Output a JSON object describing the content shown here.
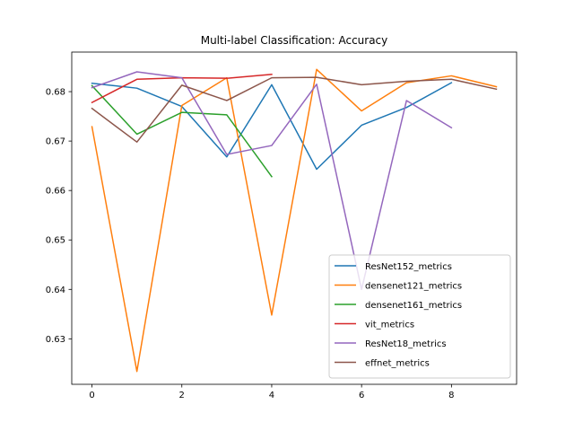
{
  "chart_data": {
    "type": "line",
    "title": "Multi-label Classification: Accuracy",
    "xlabel": "",
    "ylabel": "",
    "xlim": [
      -0.45,
      9.45
    ],
    "ylim": [
      0.6208,
      0.688
    ],
    "xticks": [
      0,
      2,
      4,
      6,
      8
    ],
    "yticks": [
      0.63,
      0.64,
      0.65,
      0.66,
      0.67,
      0.68
    ],
    "ytick_labels": [
      "0.63",
      "0.64",
      "0.65",
      "0.66",
      "0.67",
      "0.68"
    ],
    "grid": false,
    "legend_position": "lower-right",
    "series": [
      {
        "name": "ResNet152_metrics",
        "color": "#1f77b4",
        "x": [
          0,
          1,
          2,
          3,
          4,
          5,
          6,
          7,
          8
        ],
        "values": [
          0.6817,
          0.6807,
          0.677,
          0.6668,
          0.6814,
          0.6643,
          0.6732,
          0.6768,
          0.6818
        ]
      },
      {
        "name": "densenet121_metrics",
        "color": "#ff7f0e",
        "x": [
          0,
          1,
          2,
          3,
          4,
          5,
          6,
          7,
          8,
          9
        ],
        "values": [
          0.6729,
          0.6234,
          0.6772,
          0.6828,
          0.6348,
          0.6845,
          0.6761,
          0.6818,
          0.6832,
          0.681
        ]
      },
      {
        "name": "densenet161_metrics",
        "color": "#2ca02c",
        "x": [
          0,
          1,
          2,
          3,
          4
        ],
        "values": [
          0.6812,
          0.6714,
          0.6758,
          0.6753,
          0.6628
        ]
      },
      {
        "name": "vit_metrics",
        "color": "#d62728",
        "x": [
          0,
          1,
          2,
          3,
          4
        ],
        "values": [
          0.6778,
          0.6825,
          0.6828,
          0.6827,
          0.6835
        ]
      },
      {
        "name": "ResNet18_metrics",
        "color": "#9467bd",
        "x": [
          0,
          1,
          2,
          3,
          4,
          5,
          6,
          7,
          8
        ],
        "values": [
          0.6808,
          0.684,
          0.6828,
          0.6673,
          0.6691,
          0.6815,
          0.64,
          0.6782,
          0.6727
        ]
      },
      {
        "name": "effnet_metrics",
        "color": "#8c564b",
        "x": [
          0,
          1,
          2,
          3,
          4,
          5,
          6,
          7,
          8,
          9
        ],
        "values": [
          0.6766,
          0.6698,
          0.6813,
          0.6782,
          0.6828,
          0.6829,
          0.6814,
          0.6821,
          0.6825,
          0.6805
        ]
      }
    ]
  }
}
